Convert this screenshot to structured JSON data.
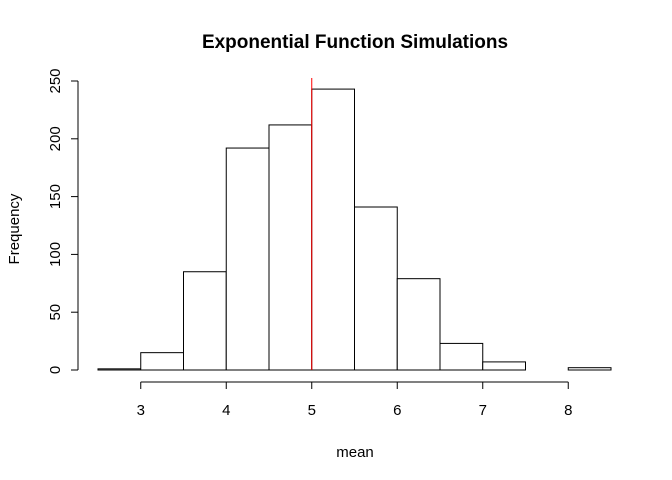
{
  "chart_data": {
    "type": "bar",
    "title": "Exponential Function Simulations",
    "xlabel": "mean",
    "ylabel": "Frequency",
    "bins": [
      {
        "from": 2.5,
        "to": 3.0,
        "count": 1
      },
      {
        "from": 3.0,
        "to": 3.5,
        "count": 15
      },
      {
        "from": 3.5,
        "to": 4.0,
        "count": 85
      },
      {
        "from": 4.0,
        "to": 4.5,
        "count": 192
      },
      {
        "from": 4.5,
        "to": 5.0,
        "count": 212
      },
      {
        "from": 5.0,
        "to": 5.5,
        "count": 243
      },
      {
        "from": 5.5,
        "to": 6.0,
        "count": 141
      },
      {
        "from": 6.0,
        "to": 6.5,
        "count": 79
      },
      {
        "from": 6.5,
        "to": 7.0,
        "count": 23
      },
      {
        "from": 7.0,
        "to": 7.5,
        "count": 7
      },
      {
        "from": 7.5,
        "to": 8.0,
        "count": 0
      },
      {
        "from": 8.0,
        "to": 8.5,
        "count": 2
      }
    ],
    "xticks": [
      3,
      4,
      5,
      6,
      7,
      8
    ],
    "yticks": [
      0,
      50,
      100,
      150,
      200,
      250
    ],
    "xlim": [
      2.5,
      8.5
    ],
    "ylim": [
      0,
      250
    ],
    "vline": {
      "x": 5.0,
      "color": "#ff0000"
    },
    "grid": false,
    "legend": "none"
  }
}
